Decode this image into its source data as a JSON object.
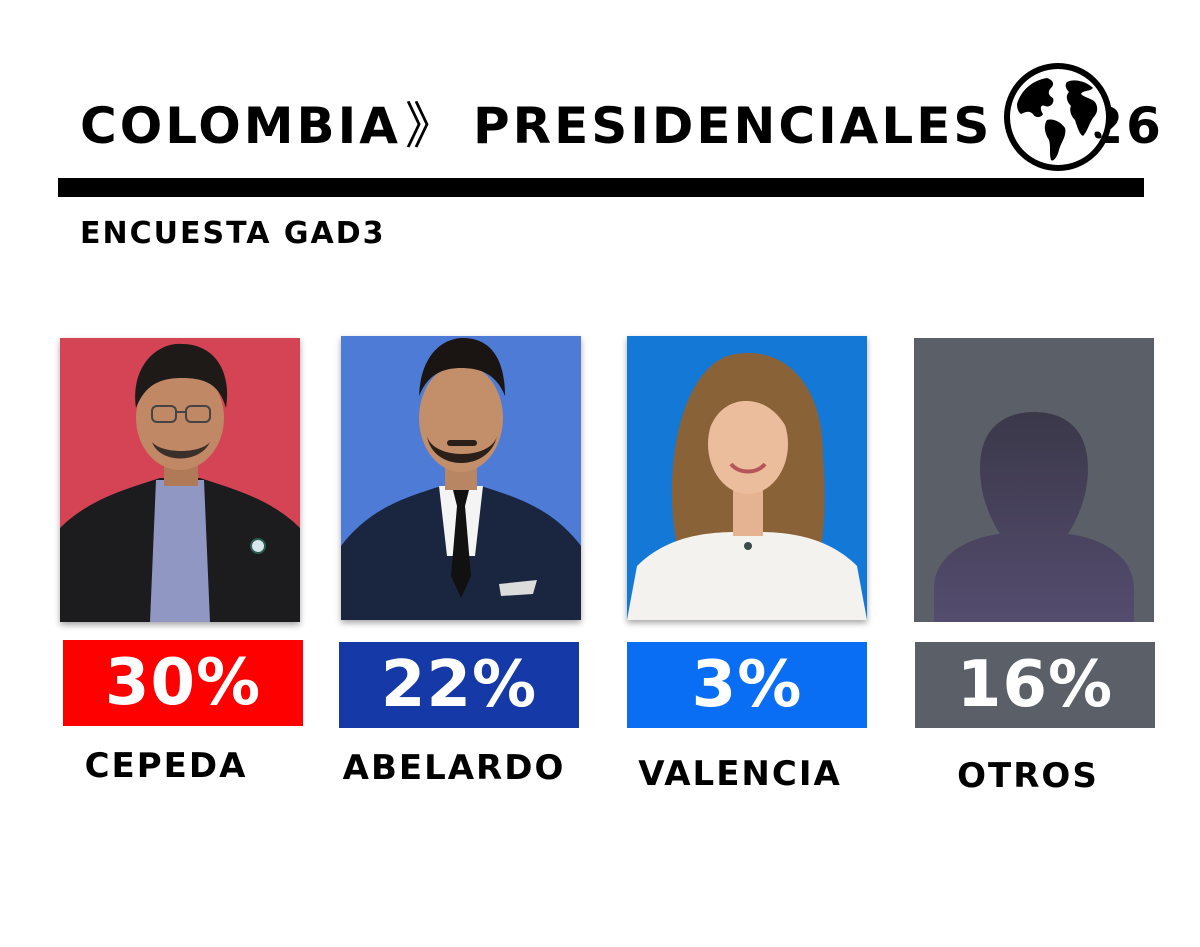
{
  "header": {
    "country": "COLOMBIA",
    "separator": "》",
    "title": "PRESIDENCIALES 2026",
    "icon": "globe-icon"
  },
  "subtitle": "ENCUESTA GAD3",
  "candidates": [
    {
      "name": "CEPEDA",
      "percent_label": "30%",
      "percent": 30,
      "bar_color": "#fe0000",
      "photo_bg": "#d44455"
    },
    {
      "name": "ABELARDO",
      "percent_label": "22%",
      "percent": 22,
      "bar_color": "#1539a6",
      "photo_bg": "#4d7bd6"
    },
    {
      "name": "VALENCIA",
      "percent_label": "3%",
      "percent": 3,
      "bar_color": "#0a6ef5",
      "photo_bg": "#1378d6"
    },
    {
      "name": "OTROS",
      "percent_label": "16%",
      "percent": 16,
      "bar_color": "#5b6068",
      "photo_bg": "#5b6068",
      "icon": "person-silhouette-icon"
    }
  ]
}
